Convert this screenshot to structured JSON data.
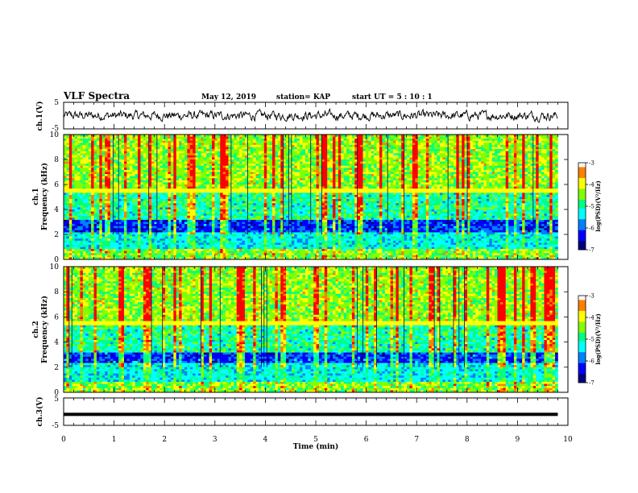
{
  "header": {
    "title": "VLF Spectra",
    "date": "May 12, 2019",
    "station": "station= KAP",
    "start": "start  UT =   5 : 10 : 1"
  },
  "colors": {
    "spectrum_palette": [
      "#00007f",
      "#0000ff",
      "#0080ff",
      "#00ffff",
      "#00ff80",
      "#80ff00",
      "#ffff00",
      "#ff8000",
      "#ff0000",
      "#ffffff"
    ],
    "trace": "#000000"
  },
  "chart_data": [
    {
      "id": "waveform-ch1",
      "type": "line",
      "ylabel": "ch.1(V)",
      "yticks": [
        "5",
        "-5"
      ],
      "ylim": [
        -5,
        5
      ],
      "xlim": [
        0,
        10
      ],
      "note_series": "noisy waveform trace spanning 0 to ~9.8 min, amplitude mostly within about -2 to 2 V",
      "x_end": 9.8
    },
    {
      "id": "spectrogram-ch1",
      "type": "heatmap",
      "ylabel": "ch.1\nFrequency  (kHz)",
      "ylabel_lines": [
        "ch.1",
        "Frequency  (kHz)"
      ],
      "yticks": [
        "0",
        "2",
        "4",
        "6",
        "8",
        "10"
      ],
      "ylim": [
        0,
        10
      ],
      "xlim": [
        0,
        10
      ],
      "x_end": 9.8,
      "colorbar": {
        "label": "log(PSD)(V²/Hz)",
        "ticks": [
          "-3",
          "-4",
          "-5",
          "-6",
          "-7"
        ],
        "range": [
          -7,
          -3
        ]
      }
    },
    {
      "id": "spectrogram-ch2",
      "type": "heatmap",
      "ylabel": "ch.2\nFrequency  (kHz)",
      "ylabel_lines": [
        "ch.2",
        "Frequency  (kHz)"
      ],
      "yticks": [
        "0",
        "2",
        "4",
        "6",
        "8",
        "10"
      ],
      "ylim": [
        0,
        10
      ],
      "xlim": [
        0,
        10
      ],
      "x_end": 9.8,
      "colorbar": {
        "label": "log(PSD)(V²/Hz)",
        "ticks": [
          "-3",
          "-4",
          "-5",
          "-6",
          "-7"
        ],
        "range": [
          -7,
          -3
        ]
      }
    },
    {
      "id": "waveform-ch3",
      "type": "line",
      "ylabel": "ch.3(V)",
      "yticks": [
        "5",
        "-5"
      ],
      "ylim": [
        -5,
        5
      ],
      "xlim": [
        0,
        10
      ],
      "x_end": 9.8,
      "note_series": "flat thick trace at about -1 V",
      "level": -1
    }
  ],
  "xaxis": {
    "label": "Time  (min)",
    "ticks": [
      "0",
      "1",
      "2",
      "3",
      "4",
      "5",
      "6",
      "7",
      "8",
      "9",
      "10"
    ],
    "xlim": [
      0,
      10
    ]
  }
}
